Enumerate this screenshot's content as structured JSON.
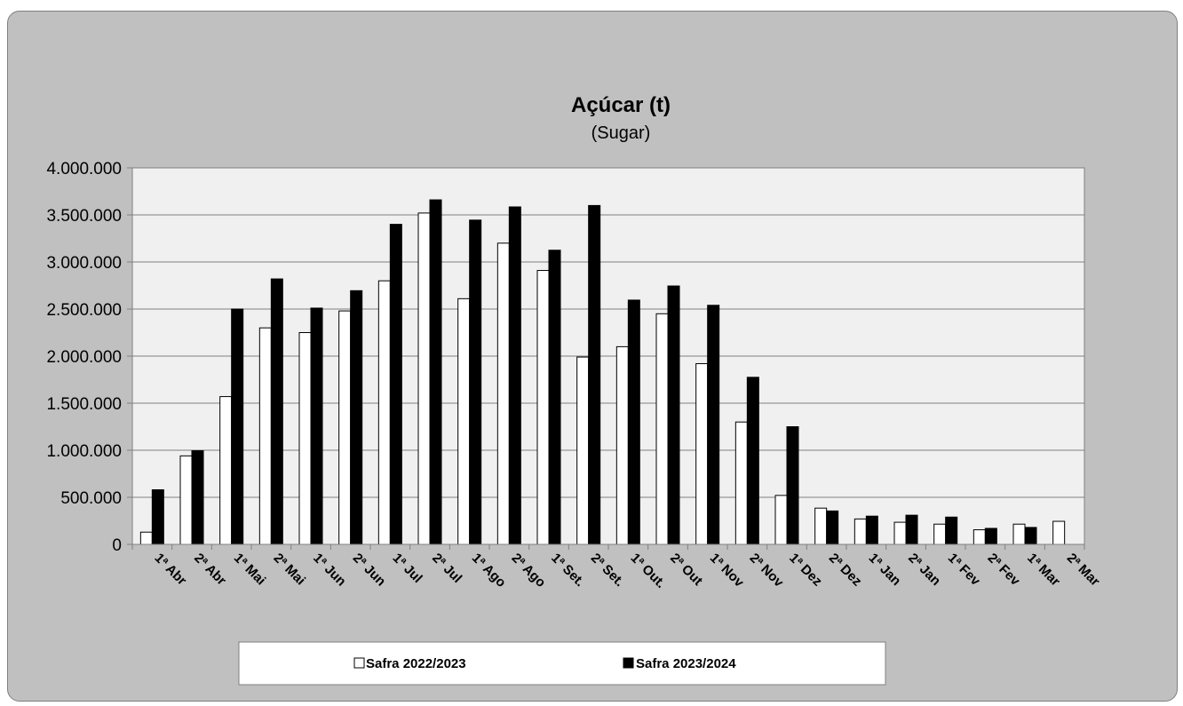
{
  "chart_data": {
    "type": "bar",
    "title": "Açúcar (t)",
    "subtitle": "(Sugar)",
    "xlabel": "",
    "ylabel": "",
    "ylim": [
      0,
      4000000
    ],
    "ytick_step": 500000,
    "ytick_labels": [
      "0",
      "500.000",
      "1.000.000",
      "1.500.000",
      "2.000.000",
      "2.500.000",
      "3.000.000",
      "3.500.000",
      "4.000.000"
    ],
    "grid": true,
    "legend_position": "bottom",
    "categories": [
      "1ª Abr",
      "2ª Abr",
      "1ª Mai",
      "2ª Mai",
      "1ª Jun",
      "2ª Jun",
      "1ª Jul",
      "2ª Jul",
      "1ª Ago",
      "2ª Ago",
      "1ª Set.",
      "2ª Set.",
      "1ª Out.",
      "2ª Out",
      "1ª Nov",
      "2ª Nov",
      "1ª Dez",
      "2ª Dez",
      "1ª Jan",
      "2ª Jan",
      "1ª Fev",
      "2ª Fev",
      "1ª Mar",
      "2ª Mar"
    ],
    "series": [
      {
        "name": "Safra 2022/2023",
        "color": "#ffffff",
        "values": [
          130000,
          940000,
          1570000,
          2300000,
          2250000,
          2480000,
          2800000,
          3520000,
          2610000,
          3200000,
          2910000,
          1990000,
          2100000,
          2450000,
          1920000,
          1300000,
          520000,
          385000,
          270000,
          235000,
          215000,
          155000,
          215000,
          245000
        ]
      },
      {
        "name": "Safra 2023/2024",
        "color": "#000000",
        "values": [
          580000,
          995000,
          2500000,
          2820000,
          2510000,
          2695000,
          3400000,
          3660000,
          3445000,
          3585000,
          3125000,
          3600000,
          2595000,
          2745000,
          2540000,
          1775000,
          1250000,
          355000,
          300000,
          310000,
          290000,
          170000,
          180000,
          null
        ]
      }
    ],
    "colors": {
      "outer_background": "#c0c0c0",
      "plot_background": "#f0f0f0",
      "gridline": "#808080"
    }
  }
}
